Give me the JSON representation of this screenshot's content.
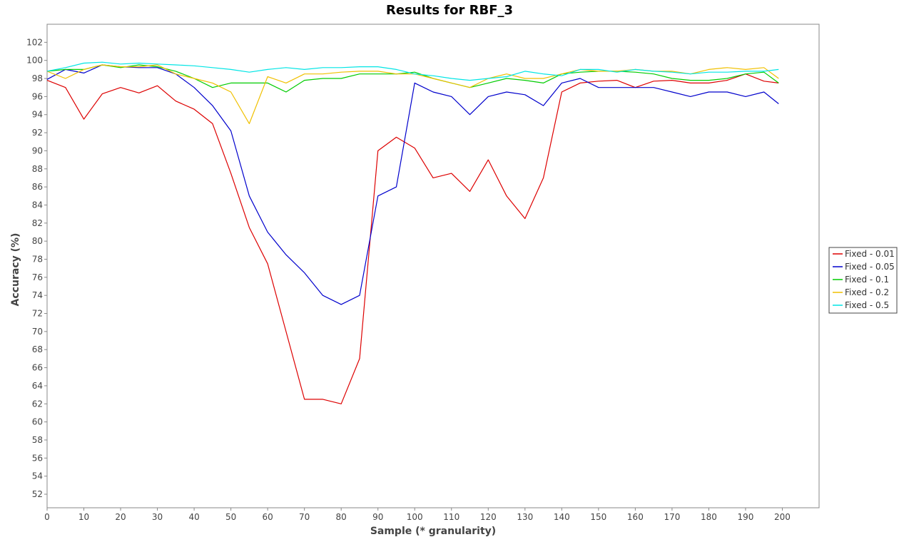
{
  "chart_data": {
    "type": "line",
    "title": "Results for RBF_3",
    "xlabel": "Sample (* granularity)",
    "ylabel": "Accuracy (%)",
    "xlim": [
      0,
      210
    ],
    "ylim": [
      50.5,
      104
    ],
    "x_ticks": [
      0,
      10,
      20,
      30,
      40,
      50,
      60,
      70,
      80,
      90,
      100,
      110,
      120,
      130,
      140,
      150,
      160,
      170,
      180,
      190,
      200
    ],
    "y_ticks": [
      52,
      54,
      56,
      58,
      60,
      62,
      64,
      66,
      68,
      70,
      72,
      74,
      76,
      78,
      80,
      82,
      84,
      86,
      88,
      90,
      92,
      94,
      96,
      98,
      100,
      102
    ],
    "grid": false,
    "legend_position": "right",
    "x_sampling": "x = 0, 5, 10, ..., 195, 199 (values sampled every 5 samples)",
    "x": [
      0,
      5,
      10,
      15,
      20,
      25,
      30,
      35,
      40,
      45,
      50,
      55,
      60,
      65,
      70,
      75,
      80,
      85,
      90,
      95,
      100,
      105,
      110,
      115,
      120,
      125,
      130,
      135,
      140,
      145,
      150,
      155,
      160,
      165,
      170,
      175,
      180,
      185,
      190,
      195,
      199
    ],
    "series": [
      {
        "name": "Fixed - 0.01",
        "color": "#dd0000",
        "values": [
          97.8,
          97.0,
          93.5,
          96.3,
          97.0,
          96.4,
          97.2,
          95.5,
          94.6,
          93.0,
          87.5,
          81.5,
          77.5,
          70.0,
          62.5,
          62.5,
          62.0,
          67.0,
          90.0,
          91.5,
          90.3,
          87.0,
          87.5,
          85.5,
          89.0,
          85.0,
          82.5,
          87.0,
          96.5,
          97.5,
          97.7,
          97.8,
          97.0,
          97.7,
          97.8,
          97.5,
          97.5,
          97.8,
          98.5,
          97.7,
          97.5
        ]
      },
      {
        "name": "Fixed - 0.05",
        "color": "#0000cc",
        "values": [
          97.9,
          99.0,
          98.6,
          99.5,
          99.3,
          99.2,
          99.2,
          98.5,
          97.0,
          95.0,
          92.2,
          85.0,
          81.0,
          78.5,
          76.5,
          74.0,
          73.0,
          74.0,
          85.0,
          86.0,
          97.5,
          96.5,
          96.0,
          94.0,
          96.0,
          96.5,
          96.2,
          95.0,
          97.5,
          98.0,
          97.0,
          97.0,
          97.0,
          97.0,
          96.5,
          96.0,
          96.5,
          96.5,
          96.0,
          96.5,
          95.2
        ]
      },
      {
        "name": "Fixed - 0.1",
        "color": "#00cc00",
        "values": [
          98.8,
          99.0,
          99.0,
          99.5,
          99.2,
          99.5,
          99.3,
          98.8,
          98.0,
          97.0,
          97.5,
          97.5,
          97.5,
          96.5,
          97.8,
          98.0,
          98.0,
          98.5,
          98.5,
          98.5,
          98.7,
          98.0,
          97.5,
          97.0,
          97.5,
          98.0,
          97.8,
          97.5,
          98.5,
          98.7,
          98.8,
          98.8,
          98.7,
          98.5,
          98.0,
          97.8,
          97.8,
          98.0,
          98.5,
          98.7,
          97.5
        ]
      },
      {
        "name": "Fixed - 0.2",
        "color": "#f0c000",
        "values": [
          98.8,
          98.0,
          99.0,
          99.5,
          99.3,
          99.3,
          99.5,
          98.5,
          98.0,
          97.5,
          96.5,
          93.0,
          98.2,
          97.5,
          98.5,
          98.5,
          98.7,
          98.8,
          98.8,
          98.5,
          98.5,
          98.0,
          97.5,
          97.0,
          98.0,
          98.5,
          98.0,
          98.0,
          98.5,
          99.0,
          98.8,
          98.8,
          99.0,
          98.8,
          98.8,
          98.5,
          99.0,
          99.2,
          99.0,
          99.2,
          98.0
        ]
      },
      {
        "name": "Fixed - 0.5",
        "color": "#00e5e5",
        "values": [
          98.8,
          99.2,
          99.7,
          99.8,
          99.6,
          99.7,
          99.6,
          99.5,
          99.4,
          99.2,
          99.0,
          98.7,
          99.0,
          99.2,
          99.0,
          99.2,
          99.2,
          99.3,
          99.3,
          99.0,
          98.5,
          98.3,
          98.0,
          97.8,
          98.0,
          98.2,
          98.8,
          98.5,
          98.3,
          99.0,
          99.0,
          98.7,
          99.0,
          98.8,
          98.7,
          98.5,
          98.7,
          98.7,
          98.8,
          98.8,
          99.0
        ]
      }
    ]
  }
}
